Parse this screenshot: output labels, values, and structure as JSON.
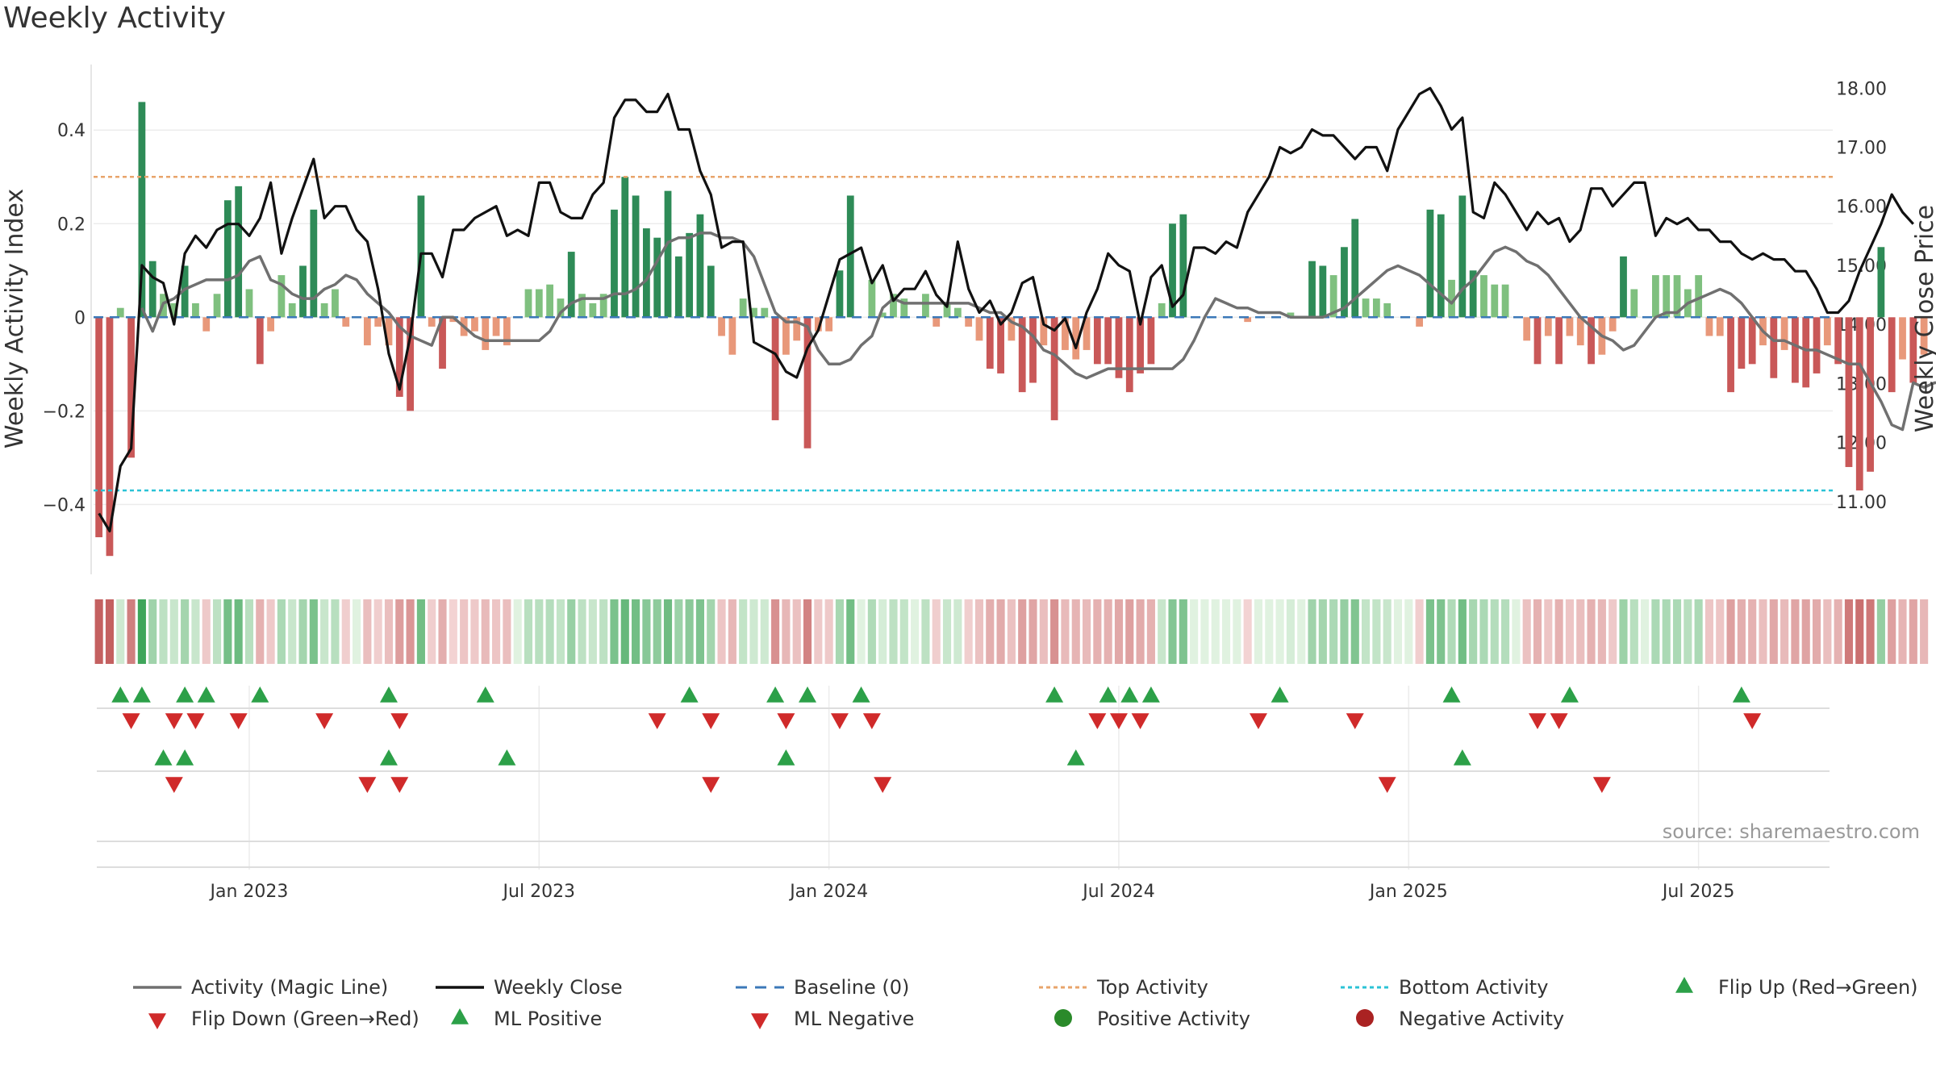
{
  "chart_data": {
    "type": "bar",
    "title": "Weekly Activity",
    "ylabel_left": "Weekly Activity Index",
    "ylabel_right": "Weekly Close Price",
    "source": "source: sharemaestro.com",
    "start_week": "2022-09-30",
    "week_count": 162,
    "left_ylim": [
      -0.52,
      0.54
    ],
    "right_ylim": [
      10.0,
      18.4
    ],
    "left_ticks": [
      {
        "v": 0.4,
        "label": "0.4"
      },
      {
        "v": 0.2,
        "label": "0.2"
      },
      {
        "v": 0,
        "label": "0"
      },
      {
        "v": -0.2,
        "label": "−0.2"
      },
      {
        "v": -0.4,
        "label": "−0.4"
      }
    ],
    "right_ticks": [
      {
        "v": 18,
        "label": "18.00"
      },
      {
        "v": 17,
        "label": "17.00"
      },
      {
        "v": 16,
        "label": "16.00"
      },
      {
        "v": 15,
        "label": "15.00"
      },
      {
        "v": 14,
        "label": "14.00"
      },
      {
        "v": 13,
        "label": "13.00"
      },
      {
        "v": 12,
        "label": "12.00"
      },
      {
        "v": 11,
        "label": "11.00"
      }
    ],
    "x_ticks": [
      {
        "week": 14,
        "label": "Jan 2023"
      },
      {
        "week": 41,
        "label": "Jul 2023"
      },
      {
        "week": 68,
        "label": "Jan 2024"
      },
      {
        "week": 95,
        "label": "Jul 2024"
      },
      {
        "week": 122,
        "label": "Jan 2025"
      },
      {
        "week": 149,
        "label": "Jul 2025"
      }
    ],
    "top_activity": 0.3,
    "bottom_activity": -0.37,
    "activity": [
      -0.47,
      -0.51,
      0.02,
      -0.3,
      0.46,
      0.12,
      0.05,
      0.03,
      0.11,
      0.03,
      -0.03,
      0.05,
      0.25,
      0.28,
      0.06,
      -0.1,
      -0.03,
      0.09,
      0.03,
      0.11,
      0.23,
      0.03,
      0.06,
      -0.02,
      0.0,
      -0.06,
      -0.02,
      -0.06,
      -0.17,
      -0.2,
      0.26,
      -0.02,
      -0.11,
      -0.01,
      -0.04,
      -0.03,
      -0.07,
      -0.04,
      -0.06,
      0.0,
      0.06,
      0.06,
      0.07,
      0.04,
      0.14,
      0.05,
      0.03,
      0.05,
      0.23,
      0.3,
      0.26,
      0.19,
      0.17,
      0.27,
      0.13,
      0.18,
      0.22,
      0.11,
      -0.04,
      -0.08,
      0.04,
      0.02,
      0.02,
      -0.22,
      -0.08,
      -0.05,
      -0.28,
      -0.03,
      -0.03,
      0.1,
      0.26,
      0.0,
      0.08,
      0.01,
      0.05,
      0.04,
      0.0,
      0.05,
      -0.02,
      0.03,
      0.02,
      -0.02,
      -0.05,
      -0.11,
      -0.12,
      -0.05,
      -0.16,
      -0.14,
      -0.06,
      -0.22,
      -0.07,
      -0.09,
      -0.07,
      -0.1,
      -0.1,
      -0.13,
      -0.16,
      -0.12,
      -0.1,
      0.03,
      0.2,
      0.22,
      0.0,
      0.0,
      0.0,
      0.0,
      0.0,
      -0.01,
      0.0,
      0.0,
      0.0,
      0.01,
      0.0,
      0.12,
      0.11,
      0.09,
      0.15,
      0.21,
      0.04,
      0.04,
      0.03,
      0.0,
      0.0,
      -0.02,
      0.23,
      0.22,
      0.08,
      0.26,
      0.1,
      0.09,
      0.07,
      0.07,
      0.0,
      -0.05,
      -0.1,
      -0.04,
      -0.1,
      -0.04,
      -0.06,
      -0.1,
      -0.08,
      -0.03,
      0.13,
      0.06,
      0.0,
      0.09,
      0.09,
      0.09,
      0.06,
      0.09,
      -0.04,
      -0.04,
      -0.16,
      -0.11,
      -0.1,
      -0.06,
      -0.13,
      -0.07,
      -0.14,
      -0.15,
      -0.12,
      -0.06,
      -0.1,
      -0.32,
      -0.37,
      -0.33,
      0.15,
      -0.16,
      -0.09,
      -0.14,
      -0.08
    ],
    "ml_start_week": 4,
    "magic_line": [
      0.02,
      -0.03,
      0.03,
      0.04,
      0.06,
      0.07,
      0.08,
      0.08,
      0.08,
      0.09,
      0.12,
      0.13,
      0.08,
      0.07,
      0.05,
      0.04,
      0.04,
      0.06,
      0.07,
      0.09,
      0.08,
      0.05,
      0.03,
      0.01,
      -0.02,
      -0.04,
      -0.05,
      -0.06,
      0.0,
      0.0,
      -0.02,
      -0.04,
      -0.05,
      -0.05,
      -0.05,
      -0.05,
      -0.05,
      -0.05,
      -0.03,
      0.01,
      0.03,
      0.04,
      0.04,
      0.04,
      0.05,
      0.05,
      0.06,
      0.08,
      0.12,
      0.16,
      0.17,
      0.17,
      0.18,
      0.18,
      0.17,
      0.17,
      0.16,
      0.13,
      0.07,
      0.01,
      -0.01,
      -0.01,
      -0.02,
      -0.07,
      -0.1,
      -0.1,
      -0.09,
      -0.06,
      -0.04,
      0.02,
      0.04,
      0.03,
      0.03,
      0.03,
      0.03,
      0.03,
      0.03,
      0.03,
      0.02,
      0.01,
      0.01,
      -0.01,
      -0.02,
      -0.04,
      -0.07,
      -0.08,
      -0.1,
      -0.12,
      -0.13,
      -0.12,
      -0.11,
      -0.11,
      -0.11,
      -0.11,
      -0.11,
      -0.11,
      -0.11,
      -0.09,
      -0.05,
      0.0,
      0.04,
      0.03,
      0.02,
      0.02,
      0.01,
      0.01,
      0.01,
      0.0,
      0.0,
      0.0,
      0.0,
      0.01,
      0.02,
      0.04,
      0.06,
      0.08,
      0.1,
      0.11,
      0.1,
      0.09,
      0.07,
      0.05,
      0.03,
      0.06,
      0.08,
      0.11,
      0.14,
      0.15,
      0.14,
      0.12,
      0.11,
      0.09,
      0.06,
      0.03,
      0.0,
      -0.02,
      -0.04,
      -0.05,
      -0.07,
      -0.06,
      -0.03,
      0.0,
      0.01,
      0.01,
      0.03,
      0.04,
      0.05,
      0.06,
      0.05,
      0.03,
      0.0,
      -0.03,
      -0.05,
      -0.05,
      -0.06,
      -0.07,
      -0.07,
      -0.08,
      -0.09,
      -0.1,
      -0.1,
      -0.14,
      -0.18,
      -0.23,
      -0.24,
      -0.14,
      -0.15,
      -0.14,
      -0.14,
      -0.13
    ],
    "close": [
      10.8,
      10.5,
      11.6,
      11.9,
      15.0,
      14.8,
      14.7,
      14.0,
      15.2,
      15.5,
      15.3,
      15.6,
      15.7,
      15.7,
      15.5,
      15.8,
      16.4,
      15.2,
      15.8,
      16.3,
      16.8,
      15.8,
      16.0,
      16.0,
      15.6,
      15.4,
      14.6,
      13.5,
      12.9,
      13.8,
      15.2,
      15.2,
      14.8,
      15.6,
      15.6,
      15.8,
      15.9,
      16.0,
      15.5,
      15.6,
      15.5,
      16.4,
      16.4,
      15.9,
      15.8,
      15.8,
      16.2,
      16.4,
      17.5,
      17.8,
      17.8,
      17.6,
      17.6,
      17.9,
      17.3,
      17.3,
      16.6,
      16.2,
      15.3,
      15.4,
      15.4,
      13.7,
      13.6,
      13.5,
      13.2,
      13.1,
      13.6,
      13.9,
      14.5,
      15.1,
      15.2,
      15.3,
      14.7,
      15.0,
      14.4,
      14.6,
      14.6,
      14.9,
      14.5,
      14.3,
      15.4,
      14.6,
      14.2,
      14.4,
      14.0,
      14.2,
      14.7,
      14.8,
      14.0,
      13.9,
      14.1,
      13.6,
      14.2,
      14.6,
      15.2,
      15.0,
      14.9,
      14.0,
      14.8,
      15.0,
      14.3,
      14.5,
      15.3,
      15.3,
      15.2,
      15.4,
      15.3,
      15.9,
      16.2,
      16.5,
      17.0,
      16.9,
      17.0,
      17.3,
      17.2,
      17.2,
      17.0,
      16.8,
      17.0,
      17.0,
      16.6,
      17.3,
      17.6,
      17.9,
      18.0,
      17.7,
      17.3,
      17.5,
      15.9,
      15.8,
      16.4,
      16.2,
      15.9,
      15.6,
      15.9,
      15.7,
      15.8,
      15.4,
      15.6,
      16.3,
      16.3,
      16.0,
      16.2,
      16.4,
      16.4,
      15.5,
      15.8,
      15.7,
      15.8,
      15.6,
      15.6,
      15.4,
      15.4,
      15.2,
      15.1,
      15.2,
      15.1,
      15.1,
      14.9,
      14.9,
      14.6,
      14.2,
      14.2,
      14.4,
      14.9,
      15.3,
      15.7,
      16.2,
      15.9,
      15.7
    ],
    "heat_strip": [
      -0.47,
      -0.51,
      0.02,
      -0.3,
      0.46,
      0.12,
      0.05,
      0.03,
      0.11,
      0.03,
      -0.03,
      0.05,
      0.25,
      0.28,
      0.06,
      -0.1,
      -0.03,
      0.09,
      0.03,
      0.11,
      0.23,
      0.03,
      0.06,
      -0.02,
      0.0,
      -0.06,
      -0.02,
      -0.06,
      -0.17,
      -0.2,
      0.26,
      -0.02,
      -0.11,
      -0.01,
      -0.04,
      -0.03,
      -0.07,
      -0.04,
      -0.06,
      0.0,
      0.06,
      0.06,
      0.07,
      0.04,
      0.14,
      0.05,
      0.03,
      0.05,
      0.23,
      0.3,
      0.26,
      0.19,
      0.17,
      0.27,
      0.13,
      0.18,
      0.22,
      0.11,
      -0.04,
      -0.08,
      0.04,
      0.02,
      0.02,
      -0.22,
      -0.08,
      -0.05,
      -0.28,
      -0.03,
      -0.03,
      0.1,
      0.26,
      0.0,
      0.08,
      0.01,
      0.05,
      0.04,
      0.0,
      0.05,
      -0.02,
      0.03,
      0.02,
      -0.02,
      -0.05,
      -0.11,
      -0.12,
      -0.05,
      -0.16,
      -0.14,
      -0.06,
      -0.22,
      -0.07,
      -0.09,
      -0.07,
      -0.1,
      -0.1,
      -0.13,
      -0.16,
      -0.12,
      -0.1,
      0.03,
      0.2,
      0.22,
      0.0,
      0.0,
      0.0,
      0.0,
      0.0,
      -0.01,
      0.0,
      0.0,
      0.0,
      0.01,
      0.0,
      0.12,
      0.11,
      0.09,
      0.15,
      0.21,
      0.04,
      0.04,
      0.03,
      0.0,
      0.0,
      -0.02,
      0.23,
      0.22,
      0.08,
      0.26,
      0.1,
      0.09,
      0.07,
      0.07,
      0.0,
      -0.05,
      -0.1,
      -0.04,
      -0.1,
      -0.04,
      -0.06,
      -0.1,
      -0.08,
      -0.03,
      0.13,
      0.06,
      0.0,
      0.09,
      0.09,
      0.09,
      0.06,
      0.09,
      -0.04,
      -0.04,
      -0.16,
      -0.11,
      -0.1,
      -0.06,
      -0.13,
      -0.07,
      -0.14,
      -0.15,
      -0.12,
      -0.06,
      -0.1,
      -0.32,
      -0.37,
      -0.33,
      0.15,
      -0.16,
      -0.09,
      -0.14,
      -0.08
    ],
    "flip_up_weeks": [
      2,
      4,
      8,
      10,
      15,
      27,
      36,
      55,
      63,
      66,
      71,
      89,
      94,
      96,
      98,
      110,
      126,
      137,
      153
    ],
    "flip_down_weeks": [
      3,
      7,
      9,
      13,
      21,
      28,
      52,
      57,
      64,
      69,
      72,
      93,
      95,
      97,
      108,
      117,
      134,
      136,
      154
    ],
    "ml_positive_weeks": [
      6,
      8,
      27,
      38,
      64,
      91,
      127
    ],
    "ml_negative_weeks": [
      7,
      25,
      28,
      57,
      73,
      120,
      140
    ],
    "legend": [
      {
        "key": "magic",
        "label": "Activity (Magic Line)"
      },
      {
        "key": "close",
        "label": "Weekly Close"
      },
      {
        "key": "baseline",
        "label": "Baseline (0)"
      },
      {
        "key": "top",
        "label": "Top Activity"
      },
      {
        "key": "bottom",
        "label": "Bottom Activity"
      },
      {
        "key": "flipup",
        "label": "Flip Up (Red→Green)"
      },
      {
        "key": "flipdown",
        "label": "Flip Down (Green→Red)"
      },
      {
        "key": "mlpos",
        "label": "ML Positive"
      },
      {
        "key": "mlneg",
        "label": "ML Negative"
      },
      {
        "key": "posact",
        "label": "Positive Activity"
      },
      {
        "key": "negact",
        "label": "Negative Activity"
      }
    ],
    "colors": {
      "pos_strong": "#2e8b57",
      "pos_weak": "#7fc07f",
      "neg_strong": "#c95858",
      "neg_weak": "#e8987a",
      "magic": "#707070",
      "close": "#111111",
      "baseline": "#3b78b8",
      "top": "#e8a46b",
      "bottom": "#2bc3d6",
      "marker_up": "#2ca048",
      "marker_down": "#d02a2a",
      "pos_dot": "#2a8a2a",
      "neg_dot": "#aa2222"
    }
  }
}
